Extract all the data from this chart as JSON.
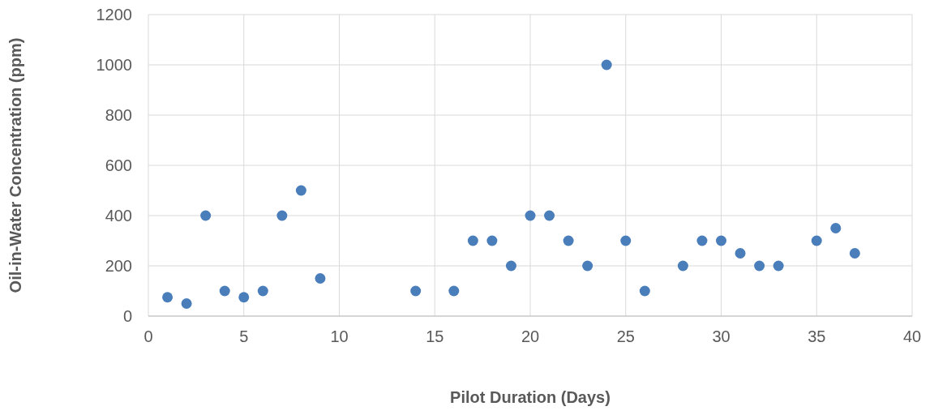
{
  "chart_data": {
    "type": "scatter",
    "xlabel": "Pilot Duration (Days)",
    "ylabel": "Oil-in-Water Concentration (ppm)",
    "x": [
      1,
      2,
      3,
      4,
      5,
      6,
      7,
      8,
      9,
      14,
      16,
      17,
      18,
      19,
      20,
      21,
      22,
      23,
      24,
      25,
      26,
      28,
      29,
      30,
      31,
      32,
      33,
      35,
      36,
      37
    ],
    "series": [
      {
        "color": "#4a7ebb",
        "values": [
          75,
          50,
          400,
          100,
          75,
          100,
          400,
          500,
          150,
          100,
          100,
          300,
          300,
          200,
          400,
          400,
          300,
          200,
          1000,
          300,
          100,
          200,
          300,
          300,
          250,
          200,
          200,
          300,
          350,
          250
        ]
      }
    ],
    "xlim": [
      0,
      40
    ],
    "xticks": [
      0,
      5,
      10,
      15,
      20,
      25,
      30,
      35,
      40
    ],
    "ylim": [
      0,
      1200
    ],
    "yticks": [
      0,
      200,
      400,
      600,
      800,
      1000,
      1200
    ],
    "grid": true,
    "marker": "circle"
  }
}
